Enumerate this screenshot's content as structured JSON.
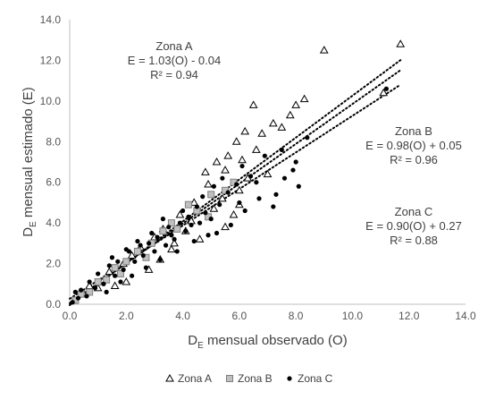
{
  "chart_data": {
    "type": "scatter",
    "xlabel": {
      "base": "D",
      "sub": "E",
      "rest": " mensual observado (O)"
    },
    "ylabel": {
      "base": "D",
      "sub": "E",
      "rest": " mensual estimado (E)"
    },
    "xlim": [
      0,
      14
    ],
    "ylim": [
      0,
      14
    ],
    "xticks": [
      "0.0",
      "2.0",
      "4.0",
      "6.0",
      "8.0",
      "10.0",
      "12.0",
      "14.0"
    ],
    "yticks": [
      "0.0",
      "2.0",
      "4.0",
      "6.0",
      "8.0",
      "10.0",
      "12.0",
      "14.0"
    ],
    "grid": false,
    "legend_position": "bottom",
    "series": [
      {
        "name": "Zona A",
        "marker": "open-triangle",
        "trend": {
          "slope": 1.03,
          "intercept": -0.04,
          "x_range": [
            0,
            11.7
          ]
        },
        "points": [
          [
            9.0,
            12.5
          ],
          [
            11.7,
            12.8
          ],
          [
            11.1,
            10.4
          ],
          [
            8.3,
            10.1
          ],
          [
            8.0,
            9.8
          ],
          [
            6.5,
            9.8
          ],
          [
            7.8,
            9.3
          ],
          [
            7.2,
            8.9
          ],
          [
            6.8,
            8.4
          ],
          [
            6.2,
            8.5
          ],
          [
            7.5,
            8.7
          ],
          [
            5.9,
            8.0
          ],
          [
            6.6,
            7.6
          ],
          [
            5.6,
            7.3
          ],
          [
            6.1,
            7.1
          ],
          [
            5.2,
            7.0
          ],
          [
            5.5,
            6.6
          ],
          [
            4.8,
            6.5
          ],
          [
            6.3,
            6.2
          ],
          [
            7.0,
            6.4
          ],
          [
            6.0,
            5.6
          ],
          [
            5.4,
            5.2
          ],
          [
            4.9,
            5.9
          ],
          [
            4.4,
            5.0
          ],
          [
            5.8,
            4.4
          ],
          [
            5.5,
            3.8
          ],
          [
            6.0,
            4.9
          ],
          [
            4.3,
            4.1
          ],
          [
            3.9,
            4.4
          ],
          [
            3.3,
            3.7
          ],
          [
            3.0,
            3.3
          ],
          [
            2.5,
            2.8
          ],
          [
            3.6,
            2.7
          ],
          [
            2.2,
            2.4
          ],
          [
            1.9,
            2.0
          ],
          [
            1.4,
            1.6
          ],
          [
            1.2,
            1.2
          ],
          [
            1.0,
            0.8
          ],
          [
            0.7,
            0.9
          ],
          [
            0.5,
            0.5
          ],
          [
            2.8,
            1.7
          ],
          [
            3.2,
            2.2
          ],
          [
            4.6,
            3.2
          ],
          [
            2.0,
            1.1
          ],
          [
            1.6,
            0.9
          ],
          [
            3.7,
            3.0
          ],
          [
            4.1,
            3.6
          ],
          [
            5.1,
            4.7
          ]
        ]
      },
      {
        "name": "Zona B",
        "marker": "gray-square",
        "trend": {
          "slope": 0.98,
          "intercept": 0.05,
          "x_range": [
            0,
            11.7
          ]
        },
        "points": [
          [
            5.8,
            6.0
          ],
          [
            5.5,
            5.6
          ],
          [
            5.0,
            5.4
          ],
          [
            4.5,
            4.6
          ],
          [
            4.2,
            4.9
          ],
          [
            3.8,
            3.7
          ],
          [
            3.3,
            3.6
          ],
          [
            2.9,
            3.0
          ],
          [
            2.4,
            2.6
          ],
          [
            2.0,
            2.1
          ],
          [
            1.6,
            1.8
          ],
          [
            1.3,
            1.2
          ],
          [
            1.0,
            1.1
          ],
          [
            0.7,
            0.6
          ],
          [
            0.4,
            0.5
          ],
          [
            0.2,
            0.2
          ],
          [
            4.9,
            4.3
          ],
          [
            3.6,
            4.0
          ],
          [
            2.7,
            2.3
          ],
          [
            1.8,
            1.5
          ]
        ]
      },
      {
        "name": "Zona C",
        "marker": "black-dot",
        "trend": {
          "slope": 0.9,
          "intercept": 0.27,
          "x_range": [
            0,
            11.7
          ]
        },
        "points": [
          [
            11.2,
            10.6
          ],
          [
            8.4,
            8.2
          ],
          [
            8.0,
            7.0
          ],
          [
            7.6,
            6.2
          ],
          [
            8.1,
            5.8
          ],
          [
            7.3,
            5.4
          ],
          [
            7.2,
            4.8
          ],
          [
            6.7,
            5.2
          ],
          [
            6.4,
            6.3
          ],
          [
            5.9,
            5.9
          ],
          [
            5.6,
            5.5
          ],
          [
            5.3,
            4.9
          ],
          [
            5.1,
            5.8
          ],
          [
            4.8,
            4.5
          ],
          [
            4.6,
            4.0
          ],
          [
            4.5,
            4.8
          ],
          [
            4.2,
            4.3
          ],
          [
            4.1,
            3.6
          ],
          [
            3.9,
            4.0
          ],
          [
            3.7,
            3.2
          ],
          [
            3.5,
            3.8
          ],
          [
            3.4,
            2.9
          ],
          [
            3.1,
            3.3
          ],
          [
            3.0,
            2.6
          ],
          [
            2.8,
            3.0
          ],
          [
            2.6,
            2.4
          ],
          [
            2.5,
            2.9
          ],
          [
            2.3,
            2.1
          ],
          [
            2.1,
            2.6
          ],
          [
            1.9,
            1.7
          ],
          [
            1.7,
            2.1
          ],
          [
            1.6,
            1.4
          ],
          [
            1.4,
            1.9
          ],
          [
            1.2,
            1.0
          ],
          [
            1.0,
            1.5
          ],
          [
            0.9,
            0.8
          ],
          [
            0.7,
            1.1
          ],
          [
            0.6,
            0.4
          ],
          [
            0.4,
            0.7
          ],
          [
            0.3,
            0.3
          ],
          [
            0.2,
            0.6
          ],
          [
            0.1,
            0.1
          ],
          [
            6.2,
            4.6
          ],
          [
            5.7,
            3.9
          ],
          [
            4.9,
            3.4
          ],
          [
            4.4,
            3.1
          ],
          [
            3.8,
            2.6
          ],
          [
            3.2,
            2.2
          ],
          [
            2.7,
            1.8
          ],
          [
            2.2,
            1.4
          ],
          [
            1.8,
            1.1
          ],
          [
            1.3,
            0.6
          ],
          [
            6.9,
            7.3
          ],
          [
            6.1,
            6.8
          ],
          [
            5.4,
            6.2
          ],
          [
            4.7,
            5.3
          ],
          [
            4.0,
            4.6
          ],
          [
            3.3,
            4.2
          ],
          [
            2.9,
            3.5
          ],
          [
            2.4,
            3.1
          ],
          [
            2.0,
            2.7
          ],
          [
            1.5,
            2.3
          ],
          [
            7.5,
            7.6
          ],
          [
            5.2,
            3.5
          ],
          [
            6.6,
            6.0
          ],
          [
            7.9,
            6.6
          ],
          [
            6.0,
            5.0
          ],
          [
            5.0,
            4.2
          ],
          [
            4.3,
            3.9
          ],
          [
            3.6,
            3.4
          ]
        ]
      }
    ],
    "annotations": [
      {
        "series": "Zona A",
        "lines": [
          "Zona A",
          "E = 1.03(O) - 0.04",
          "R² = 0.94"
        ]
      },
      {
        "series": "Zona B",
        "lines": [
          "Zona B",
          "E = 0.98(O) + 0.05",
          "R² = 0.96"
        ]
      },
      {
        "series": "Zona C",
        "lines": [
          "Zona C",
          "E = 0.90(O) + 0.27",
          "R² = 0.88"
        ]
      }
    ]
  }
}
